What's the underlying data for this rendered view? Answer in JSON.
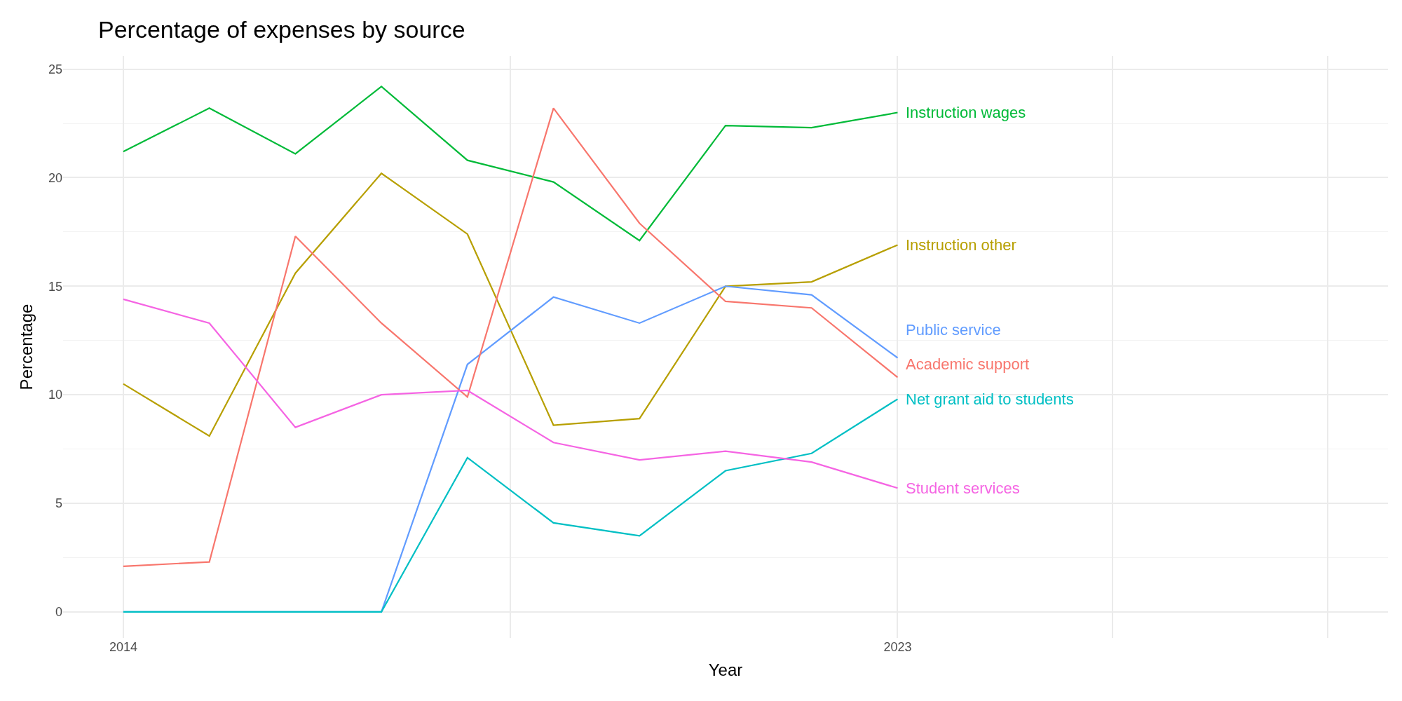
{
  "chart_data": {
    "type": "line",
    "title": "Percentage of expenses by source",
    "xlabel": "Year",
    "ylabel": "Percentage",
    "x": [
      2014,
      2015,
      2016,
      2017,
      2018,
      2019,
      2020,
      2021,
      2022,
      2023
    ],
    "series": [
      {
        "name": "Instruction wages",
        "color": "#00ba38",
        "values": [
          21.2,
          23.2,
          21.1,
          24.2,
          20.8,
          19.8,
          17.1,
          22.4,
          22.3,
          23.0
        ]
      },
      {
        "name": "Instruction other",
        "color": "#b79f00",
        "values": [
          10.5,
          8.1,
          15.6,
          20.2,
          17.4,
          8.6,
          8.9,
          15.0,
          15.2,
          16.9
        ]
      },
      {
        "name": "Public service",
        "color": "#619cff",
        "values": [
          0,
          0,
          0,
          0,
          11.4,
          14.5,
          13.3,
          15.0,
          14.6,
          11.7
        ]
      },
      {
        "name": "Academic support",
        "color": "#f8766d",
        "values": [
          2.1,
          2.3,
          17.3,
          13.3,
          9.9,
          23.2,
          17.9,
          14.3,
          14.0,
          10.8
        ]
      },
      {
        "name": "Net grant aid to students",
        "color": "#00bfc4",
        "values": [
          0,
          0,
          0,
          0,
          7.1,
          4.1,
          3.5,
          6.5,
          7.3,
          9.8
        ]
      },
      {
        "name": "Student services",
        "color": "#f564e3",
        "values": [
          14.4,
          13.3,
          8.5,
          10.0,
          10.2,
          7.8,
          7.0,
          7.4,
          6.9,
          5.7
        ]
      }
    ],
    "xlim": [
      2013.3,
      2028.7
    ],
    "xticks": [
      2014,
      {
        "value": 2018.5,
        "label": null
      },
      2023,
      {
        "value": 2025.5,
        "label": null
      },
      {
        "value": 2028,
        "label": null
      }
    ],
    "ylim": [
      -1.2,
      25.6
    ],
    "yticks": [
      0,
      5,
      10,
      15,
      20,
      25
    ],
    "grid": true,
    "legend": false,
    "marker": "none",
    "line_style": "solid"
  }
}
